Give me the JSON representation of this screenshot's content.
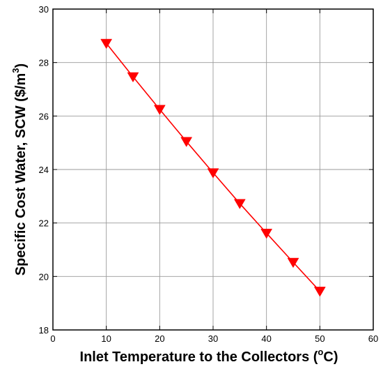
{
  "chart_data": {
    "type": "line",
    "xlabel": "Inlet Temperature to the Collectors (",
    "xlabel_unit_sup": "o",
    "xlabel_tail": "C)",
    "ylabel": "Specific Cost Water, SCW ($/m",
    "ylabel_sup": "3",
    "ylabel_tail": ")",
    "xlim": [
      0,
      60
    ],
    "ylim": [
      18,
      30
    ],
    "x_ticks": [
      "0",
      "10",
      "20",
      "30",
      "40",
      "50",
      "60"
    ],
    "y_ticks": [
      "18",
      "20",
      "22",
      "24",
      "26",
      "28",
      "30"
    ],
    "grid": true,
    "series": [
      {
        "marker": "triangle-down",
        "color": "#ff0000",
        "x": [
          10,
          15,
          20,
          25,
          30,
          35,
          40,
          45,
          50
        ],
        "values": [
          28.72,
          27.47,
          26.25,
          25.05,
          23.88,
          22.73,
          21.62,
          20.53,
          19.45
        ]
      }
    ]
  }
}
